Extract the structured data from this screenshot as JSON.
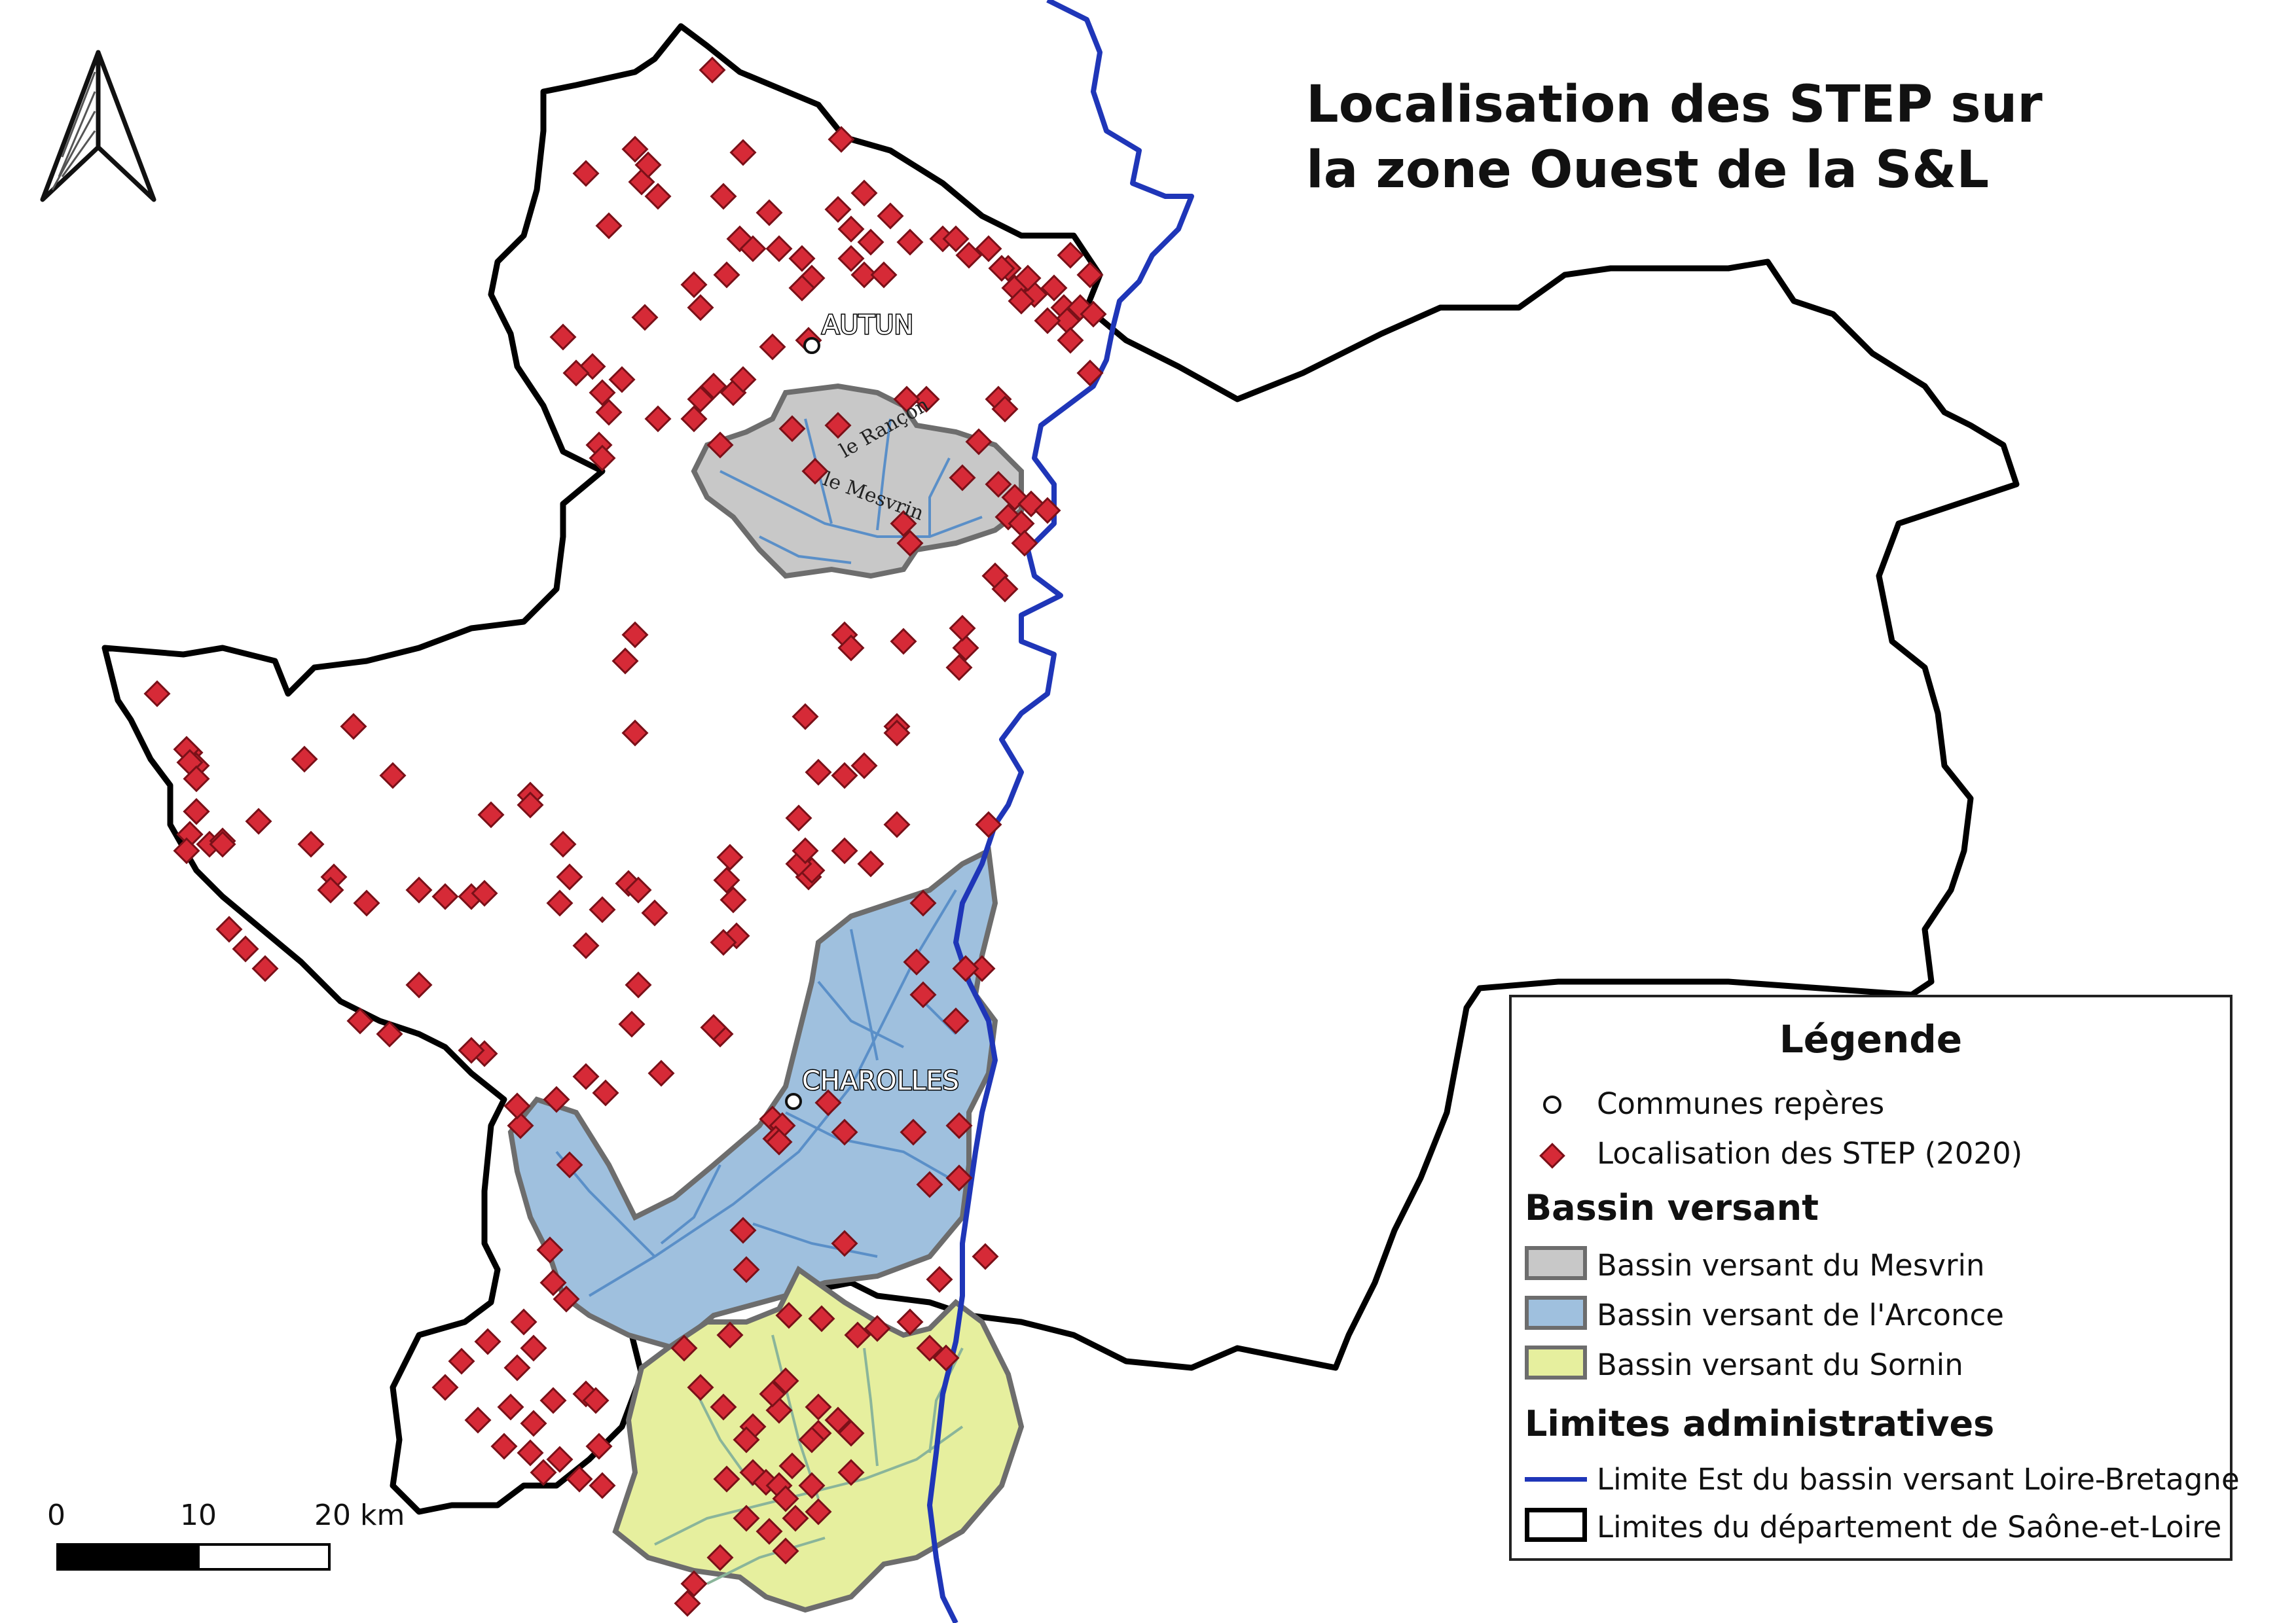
{
  "title": {
    "line1": "Localisation des STEP sur",
    "line2": "la zone Ouest de la S&L"
  },
  "towns": [
    {
      "name": "AUTUN"
    },
    {
      "name": "CHAROLLES"
    }
  ],
  "rivers": [
    {
      "name": "le Rançon"
    },
    {
      "name": "le Mesvrin"
    }
  ],
  "legend": {
    "title": "Légende",
    "communes": "Communes repères",
    "step": "Localisation des STEP (2020)",
    "section_bassin": "Bassin versant",
    "mesvrin": "Bassin versant du Mesvrin",
    "arconce": "Bassin versant de l'Arconce",
    "sornin": "Bassin versant du Sornin",
    "section_limites": "Limites administratives",
    "limite_est": "Limite Est du bassin versant Loire-Bretagne",
    "limites_dep": "Limites du département de Saône-et-Loire"
  },
  "scale": {
    "label_0": "0",
    "label_10": "10",
    "label_20": "20 km"
  },
  "colors": {
    "step_marker": "#d62a37",
    "step_marker_outline": "#7a1018",
    "mesvrin_fill": "#c8c8c8",
    "arconce_fill": "#9fc0de",
    "sornin_fill": "#e6ef9e",
    "basin_outline": "#6d6d6d",
    "loire_bretagne_limit": "#1f36b8",
    "department_limit": "#000000",
    "river_lines": "#5a8fc8"
  }
}
